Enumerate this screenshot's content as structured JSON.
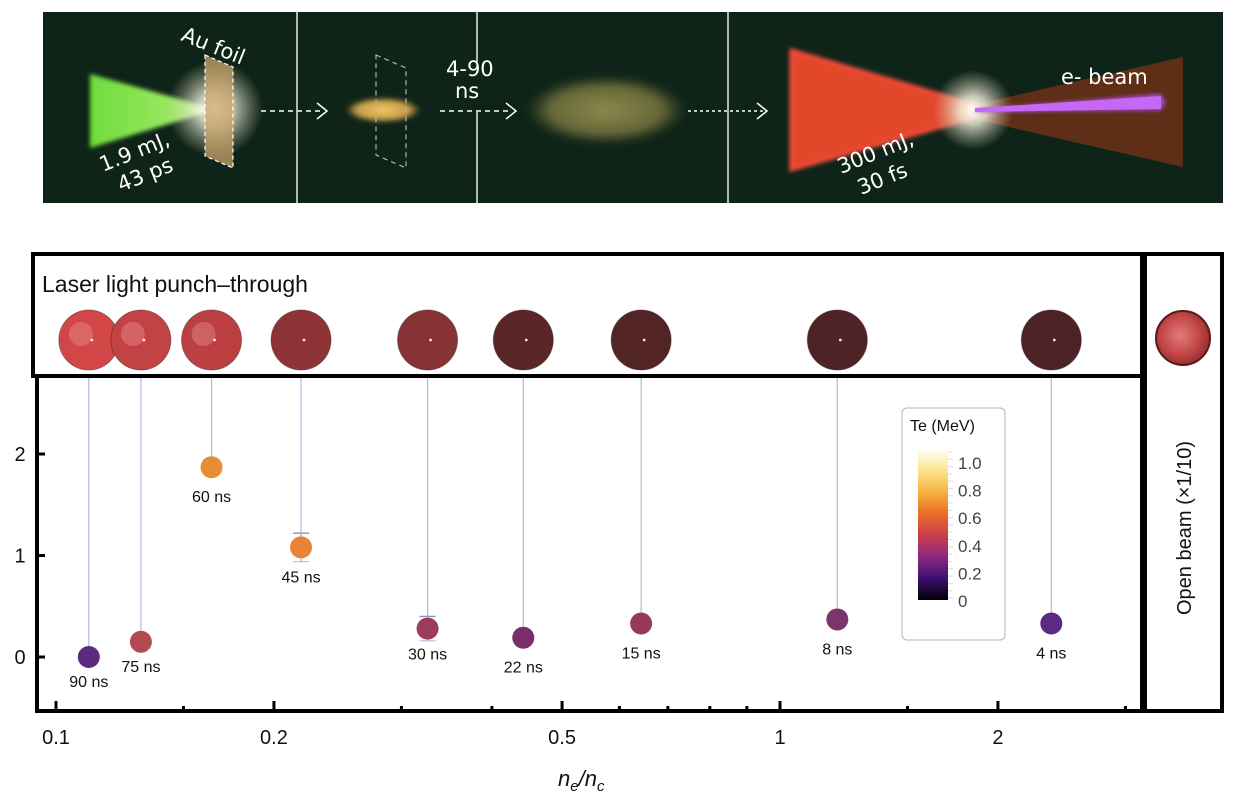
{
  "schematic": {
    "foil_label": "Au foil",
    "pump_label_line1": "1.9 mJ,",
    "pump_label_line2": "43 ps",
    "delay_label_line1": "4-90",
    "delay_label_line2": "ns",
    "drive_label_line1": "300 mJ,",
    "drive_label_line2": "30 fs",
    "ebeam_label": "e- beam",
    "colors": {
      "background": "#0f2418",
      "pump_laser": "#7ee04a",
      "drive_laser": "#e2462a",
      "electron_beam": "#b04be8",
      "foil": "#c9a46a"
    }
  },
  "punch_through": {
    "title": "Laser light punch–through",
    "open_beam_label": "Open beam  (×1/10)"
  },
  "chart_data": {
    "type": "scatter",
    "title": "",
    "xlabel": "n_e/n_c",
    "ylabel": "",
    "xscale": "log",
    "xlim": [
      0.095,
      3.3
    ],
    "ylim": [
      -0.5,
      2.7
    ],
    "x_ticks": [
      0.1,
      0.2,
      0.5,
      1,
      2
    ],
    "x_tick_labels": [
      "0.1",
      "0.2",
      "0.5",
      "1",
      "2"
    ],
    "x_minor_ticks": [
      0.3,
      0.4,
      0.6,
      0.7,
      0.8,
      0.9,
      3
    ],
    "y_ticks": [
      0,
      1,
      2
    ],
    "y_tick_labels": [
      "0",
      "1",
      "2"
    ],
    "grid": false,
    "points": [
      {
        "x": 0.111,
        "y": 0.0,
        "label": "90 ns",
        "te": 0.22,
        "color": "#5a2a7e"
      },
      {
        "x": 0.131,
        "y": 0.15,
        "label": "75 ns",
        "te": 0.42,
        "color": "#b24a50"
      },
      {
        "x": 0.164,
        "y": 1.87,
        "label": "60 ns",
        "te": 0.62,
        "color": "#ea8b36"
      },
      {
        "x": 0.218,
        "y": 1.08,
        "label": "45 ns",
        "te": 0.6,
        "color": "#ea8333",
        "err": 0.14
      },
      {
        "x": 0.326,
        "y": 0.28,
        "label": "30 ns",
        "te": 0.36,
        "color": "#9c3c5b",
        "err": 0.12
      },
      {
        "x": 0.442,
        "y": 0.19,
        "label": "22 ns",
        "te": 0.28,
        "color": "#7b2e6c"
      },
      {
        "x": 0.643,
        "y": 0.33,
        "label": "15 ns",
        "te": 0.34,
        "color": "#963a5d"
      },
      {
        "x": 1.2,
        "y": 0.37,
        "label": "8 ns",
        "te": 0.29,
        "color": "#7d336c"
      },
      {
        "x": 2.37,
        "y": 0.33,
        "label": "4 ns",
        "te": 0.24,
        "color": "#5c2a82"
      }
    ],
    "colorbar": {
      "title": "Te (MeV)",
      "range": [
        0,
        1.0
      ],
      "tick_labels": [
        "1.0",
        "0.8",
        "0.6",
        "0.4",
        "0.2",
        "0"
      ],
      "colormap": "inferno",
      "stops": [
        "#000004",
        "#3b0f70",
        "#8c2981",
        "#c73e4c",
        "#ea6a2a",
        "#f6b03c",
        "#fbe38c",
        "#fffdf2"
      ]
    },
    "stem_color": "#a9bedb",
    "punch_through_spots": [
      {
        "x": 0.111,
        "brightness": 1.0
      },
      {
        "x": 0.131,
        "brightness": 0.9
      },
      {
        "x": 0.164,
        "brightness": 0.85
      },
      {
        "x": 0.218,
        "brightness": 0.55
      },
      {
        "x": 0.326,
        "brightness": 0.5
      },
      {
        "x": 0.442,
        "brightness": 0.2
      },
      {
        "x": 0.643,
        "brightness": 0.15
      },
      {
        "x": 1.2,
        "brightness": 0.12
      },
      {
        "x": 2.37,
        "brightness": 0.12
      }
    ]
  }
}
